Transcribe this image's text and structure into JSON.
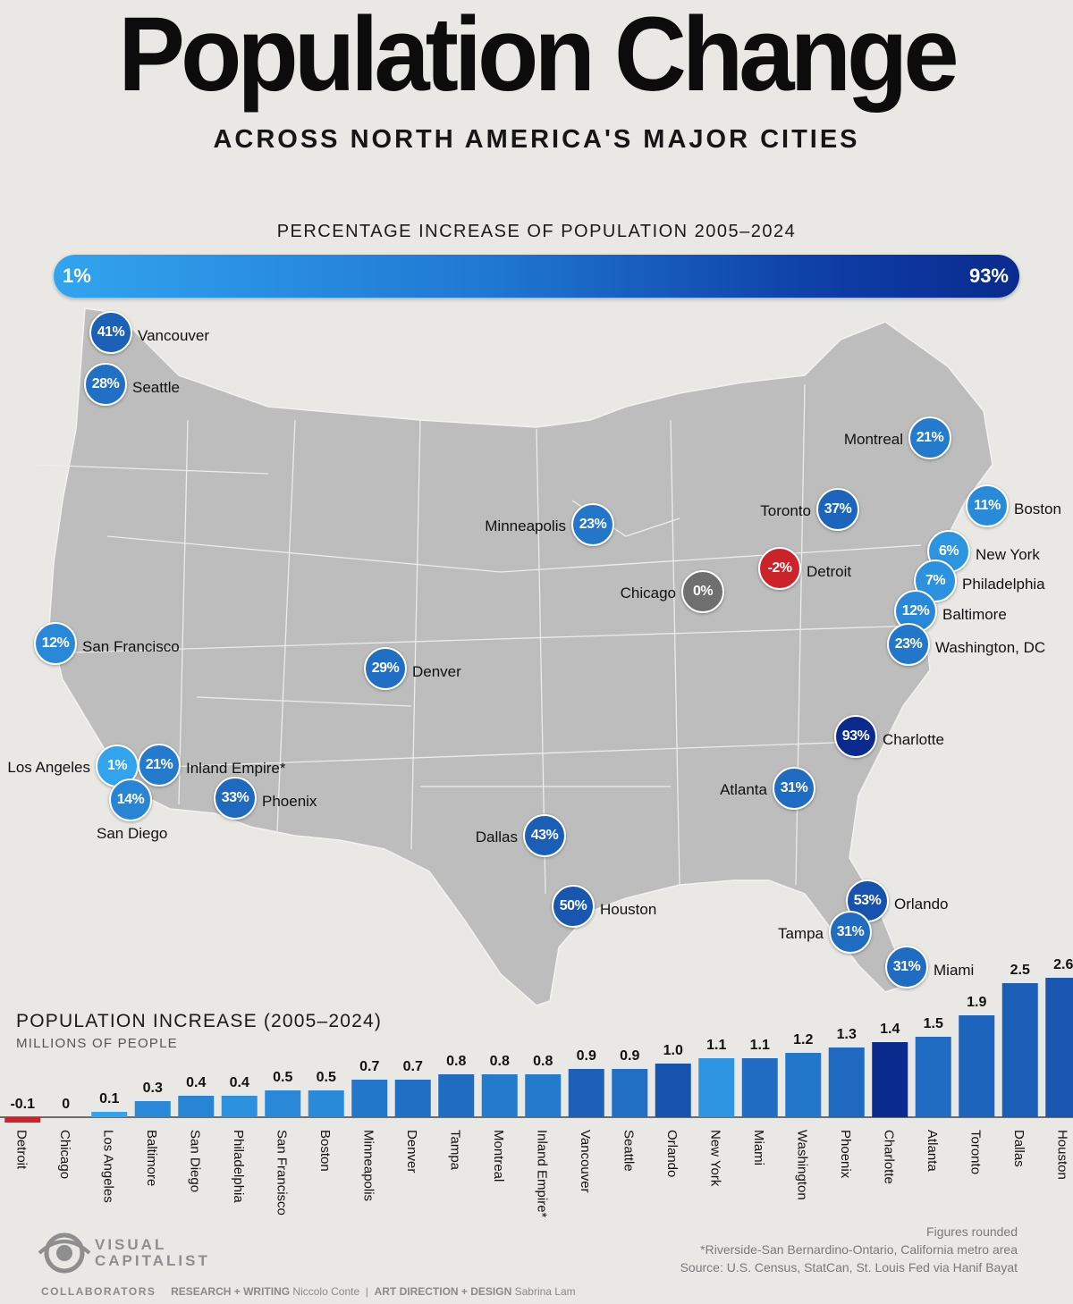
{
  "header": {
    "title": "Population Change",
    "subtitle": "ACROSS NORTH AMERICA'S MAJOR CITIES"
  },
  "legend": {
    "title": "PERCENTAGE INCREASE OF POPULATION 2005–2024",
    "min_label": "1%",
    "max_label": "93%",
    "gradient_colors": [
      "#32a4ee",
      "#1f78d2",
      "#0e3ea6",
      "#0a2a8e"
    ]
  },
  "map": {
    "cities": [
      {
        "name": "Vancouver",
        "pct": "41%"
      },
      {
        "name": "Seattle",
        "pct": "28%"
      },
      {
        "name": "Montreal",
        "pct": "21%"
      },
      {
        "name": "Boston",
        "pct": "11%"
      },
      {
        "name": "Toronto",
        "pct": "37%"
      },
      {
        "name": "Minneapolis",
        "pct": "23%"
      },
      {
        "name": "New York",
        "pct": "6%"
      },
      {
        "name": "Detroit",
        "pct": "-2%"
      },
      {
        "name": "Philadelphia",
        "pct": "7%"
      },
      {
        "name": "Chicago",
        "pct": "0%"
      },
      {
        "name": "Baltimore",
        "pct": "12%"
      },
      {
        "name": "San Francisco",
        "pct": "12%"
      },
      {
        "name": "Washington, DC",
        "pct": "23%"
      },
      {
        "name": "Denver",
        "pct": "29%"
      },
      {
        "name": "Charlotte",
        "pct": "93%"
      },
      {
        "name": "Los Angeles",
        "pct": "1%"
      },
      {
        "name": "Inland Empire*",
        "pct": "21%"
      },
      {
        "name": "San Diego",
        "pct": "14%"
      },
      {
        "name": "Phoenix",
        "pct": "33%"
      },
      {
        "name": "Atlanta",
        "pct": "31%"
      },
      {
        "name": "Dallas",
        "pct": "43%"
      },
      {
        "name": "Houston",
        "pct": "50%"
      },
      {
        "name": "Orlando",
        "pct": "53%"
      },
      {
        "name": "Tampa",
        "pct": "31%"
      },
      {
        "name": "Miami",
        "pct": "31%"
      }
    ],
    "colors": {
      "negative": "#cc2229",
      "zero": "#6f6f6f",
      "scale_low": "#32a4ee",
      "scale_high": "#0a2a8e"
    }
  },
  "chart_data": {
    "type": "bar",
    "title": "POPULATION INCREASE (2005–2024)",
    "subtitle": "MILLIONS OF PEOPLE",
    "categories": [
      "Detroit",
      "Chicago",
      "Los Angeles",
      "Baltimore",
      "San Diego",
      "Philadelphia",
      "San Francisco",
      "Boston",
      "Minneapolis",
      "Denver",
      "Tampa",
      "Montreal",
      "Inland Empire*",
      "Vancouver",
      "Seattle",
      "Orlando",
      "New York",
      "Miami",
      "Washington",
      "Phoenix",
      "Charlotte",
      "Atlanta",
      "Toronto",
      "Dallas",
      "Houston"
    ],
    "values": [
      -0.1,
      0,
      0.1,
      0.3,
      0.4,
      0.4,
      0.5,
      0.5,
      0.7,
      0.7,
      0.8,
      0.8,
      0.8,
      0.9,
      0.9,
      1.0,
      1.1,
      1.1,
      1.2,
      1.3,
      1.4,
      1.5,
      1.9,
      2.5,
      2.6
    ],
    "value_labels": [
      "-0.1",
      "0",
      "0.1",
      "0.3",
      "0.4",
      "0.4",
      "0.5",
      "0.5",
      "0.7",
      "0.7",
      "0.8",
      "0.8",
      "0.8",
      "0.9",
      "0.9",
      "1.0",
      "1.1",
      "1.1",
      "1.2",
      "1.3",
      "1.4",
      "1.5",
      "1.9",
      "2.5",
      "2.6"
    ],
    "pct_change": [
      -2,
      0,
      1,
      12,
      14,
      7,
      12,
      11,
      23,
      29,
      31,
      21,
      21,
      41,
      28,
      53,
      6,
      31,
      23,
      33,
      93,
      31,
      37,
      43,
      50
    ],
    "ylim": [
      -0.1,
      2.6
    ],
    "colors": {
      "negative": "#cc2229",
      "scale_low": "#32a4ee",
      "scale_high": "#0a2a8e"
    }
  },
  "footer": {
    "note_rounded": "Figures rounded",
    "note_ie": "*Riverside-San Bernardino-Ontario, California metro area",
    "source": "Source: U.S. Census, StatCan, St. Louis Fed via Hanif Bayat",
    "logo_line1": "VISUAL",
    "logo_line2": "CAPITALIST",
    "collab_label": "COLLABORATORS",
    "research_label": "RESEARCH + WRITING",
    "research_name": "Niccolo Conte",
    "design_label": "ART DIRECTION + DESIGN",
    "design_name": "Sabrina Lam"
  }
}
